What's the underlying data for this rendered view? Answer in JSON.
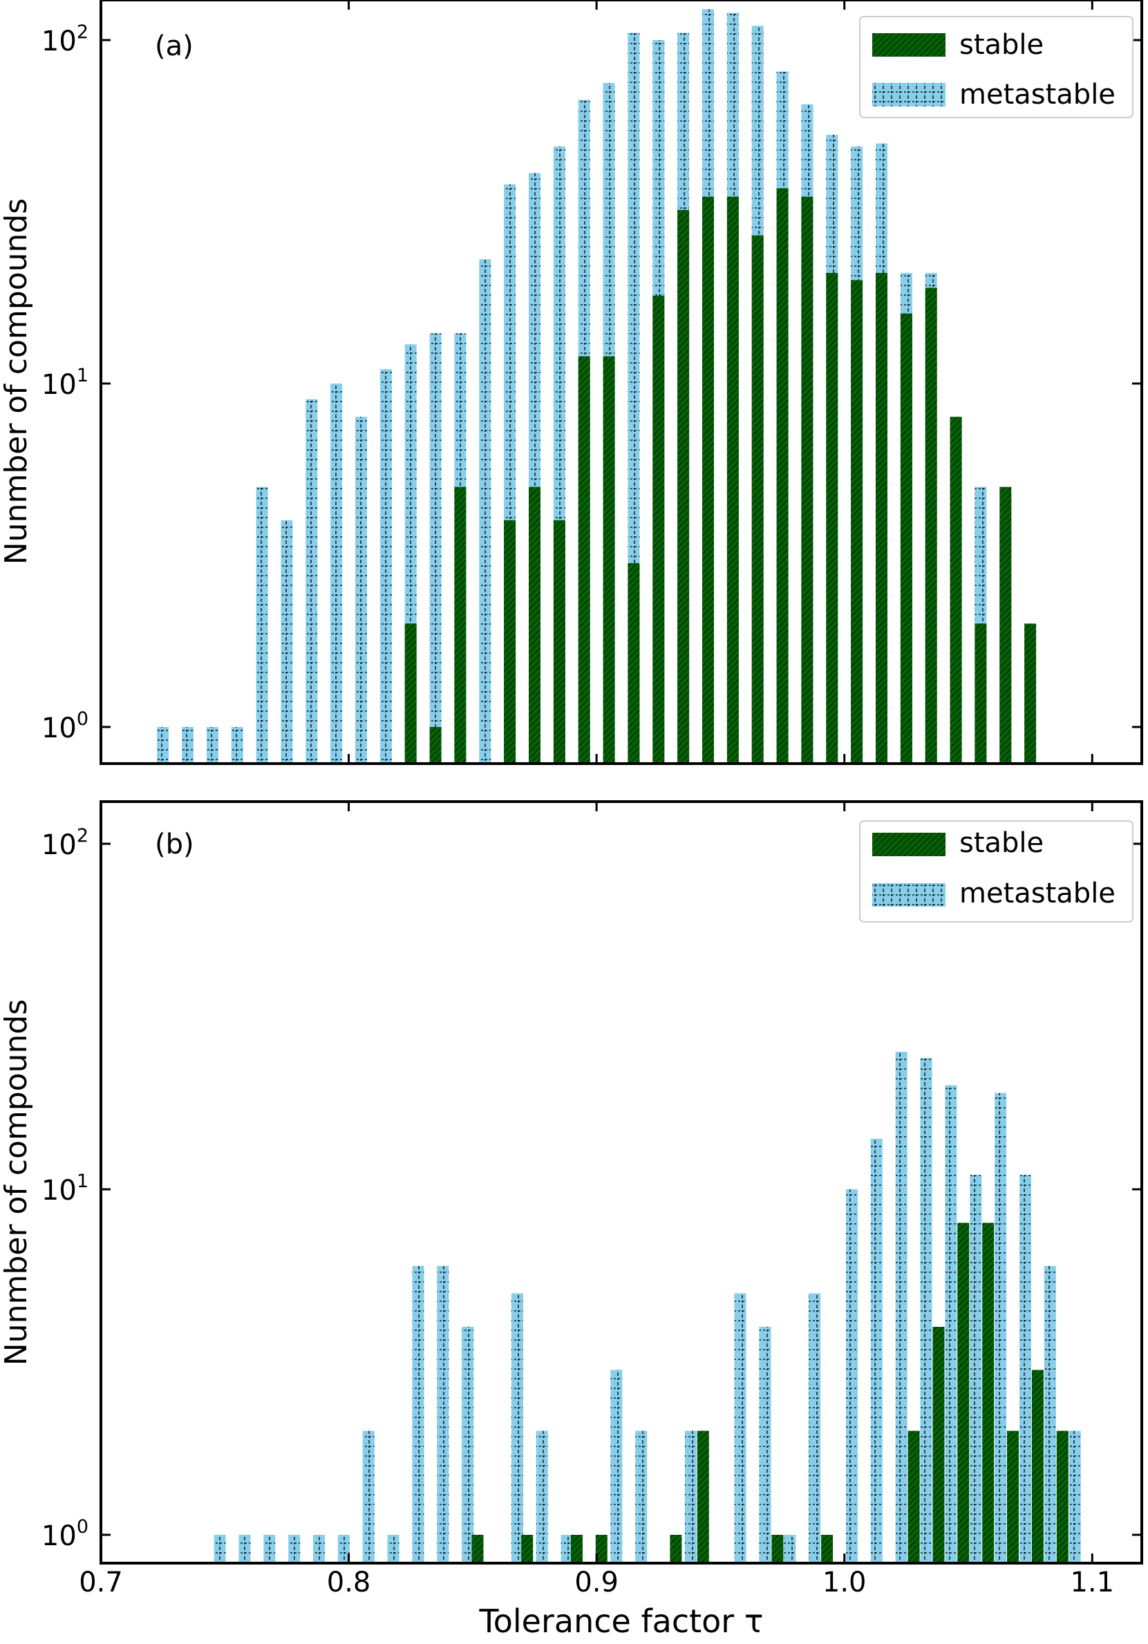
{
  "figure": {
    "xlabel": "Tolerance factor τ",
    "ylabel": "Nunmber of compounds",
    "xticks": [
      "0.7",
      "0.8",
      "0.9",
      "1.0",
      "1.1"
    ],
    "xtick_values": [
      0.7,
      0.8,
      0.9,
      1.0,
      1.1
    ],
    "ytick_labels": [
      {
        "base": "10",
        "exp": "0",
        "value": 1
      },
      {
        "base": "10",
        "exp": "1",
        "value": 10
      },
      {
        "base": "10",
        "exp": "2",
        "value": 100
      }
    ],
    "colors": {
      "stable_fill": "#006400",
      "stable_hatch": "#1a1a1a",
      "metastable_fill": "#87CEEB",
      "metastable_hatch": "#000000",
      "axes": "#000000"
    }
  },
  "chart_data": [
    {
      "type": "bar",
      "panel_label": "(a)",
      "title": "",
      "xlabel": "",
      "ylabel": "Nunmber of compounds",
      "yscale": "log",
      "ylim": [
        0.8,
        130
      ],
      "xlim": [
        0.7,
        1.12
      ],
      "grid": false,
      "legend_position": "top-right",
      "series": [
        {
          "name": "stable",
          "points": [
            {
              "x": 0.825,
              "y": 2
            },
            {
              "x": 0.835,
              "y": 1
            },
            {
              "x": 0.845,
              "y": 5
            },
            {
              "x": 0.865,
              "y": 4
            },
            {
              "x": 0.875,
              "y": 5
            },
            {
              "x": 0.885,
              "y": 4
            },
            {
              "x": 0.895,
              "y": 12
            },
            {
              "x": 0.905,
              "y": 12
            },
            {
              "x": 0.915,
              "y": 3
            },
            {
              "x": 0.925,
              "y": 18
            },
            {
              "x": 0.935,
              "y": 32
            },
            {
              "x": 0.945,
              "y": 35
            },
            {
              "x": 0.955,
              "y": 35
            },
            {
              "x": 0.965,
              "y": 27
            },
            {
              "x": 0.975,
              "y": 37
            },
            {
              "x": 0.985,
              "y": 35
            },
            {
              "x": 0.995,
              "y": 21
            },
            {
              "x": 1.005,
              "y": 20
            },
            {
              "x": 1.015,
              "y": 21
            },
            {
              "x": 1.025,
              "y": 16
            },
            {
              "x": 1.035,
              "y": 19
            },
            {
              "x": 1.045,
              "y": 8
            },
            {
              "x": 1.055,
              "y": 2
            },
            {
              "x": 1.065,
              "y": 5
            },
            {
              "x": 1.075,
              "y": 2
            }
          ]
        },
        {
          "name": "metastable",
          "points": [
            {
              "x": 0.725,
              "y": 1
            },
            {
              "x": 0.735,
              "y": 1
            },
            {
              "x": 0.745,
              "y": 1
            },
            {
              "x": 0.755,
              "y": 1
            },
            {
              "x": 0.765,
              "y": 5
            },
            {
              "x": 0.775,
              "y": 4
            },
            {
              "x": 0.785,
              "y": 9
            },
            {
              "x": 0.795,
              "y": 10
            },
            {
              "x": 0.805,
              "y": 8
            },
            {
              "x": 0.815,
              "y": 11
            },
            {
              "x": 0.825,
              "y": 13
            },
            {
              "x": 0.835,
              "y": 14
            },
            {
              "x": 0.845,
              "y": 14
            },
            {
              "x": 0.855,
              "y": 23
            },
            {
              "x": 0.865,
              "y": 38
            },
            {
              "x": 0.875,
              "y": 41
            },
            {
              "x": 0.885,
              "y": 49
            },
            {
              "x": 0.895,
              "y": 67
            },
            {
              "x": 0.905,
              "y": 75
            },
            {
              "x": 0.915,
              "y": 105
            },
            {
              "x": 0.925,
              "y": 100
            },
            {
              "x": 0.935,
              "y": 105
            },
            {
              "x": 0.945,
              "y": 123
            },
            {
              "x": 0.955,
              "y": 120
            },
            {
              "x": 0.965,
              "y": 110
            },
            {
              "x": 0.975,
              "y": 81
            },
            {
              "x": 0.985,
              "y": 65
            },
            {
              "x": 0.995,
              "y": 53
            },
            {
              "x": 1.005,
              "y": 49
            },
            {
              "x": 1.015,
              "y": 50
            },
            {
              "x": 1.025,
              "y": 21
            },
            {
              "x": 1.035,
              "y": 21
            },
            {
              "x": 1.045,
              "y": 8
            },
            {
              "x": 1.055,
              "y": 5
            },
            {
              "x": 1.065,
              "y": 4
            }
          ]
        }
      ]
    },
    {
      "type": "bar",
      "panel_label": "(b)",
      "title": "",
      "xlabel": "Tolerance factor τ",
      "ylabel": "Nunmber of compounds",
      "yscale": "log",
      "ylim": [
        0.8,
        130
      ],
      "xlim": [
        0.7,
        1.12
      ],
      "grid": false,
      "legend_position": "top-right",
      "series": [
        {
          "name": "stable",
          "points": [
            {
              "x": 0.852,
              "y": 1
            },
            {
              "x": 0.872,
              "y": 1
            },
            {
              "x": 0.892,
              "y": 1
            },
            {
              "x": 0.902,
              "y": 1
            },
            {
              "x": 0.932,
              "y": 1
            },
            {
              "x": 0.943,
              "y": 2
            },
            {
              "x": 0.973,
              "y": 1
            },
            {
              "x": 0.993,
              "y": 1
            },
            {
              "x": 1.028,
              "y": 2
            },
            {
              "x": 1.038,
              "y": 4
            },
            {
              "x": 1.048,
              "y": 8
            },
            {
              "x": 1.058,
              "y": 8
            },
            {
              "x": 1.068,
              "y": 2
            },
            {
              "x": 1.078,
              "y": 3
            },
            {
              "x": 1.088,
              "y": 2
            }
          ]
        },
        {
          "name": "metastable",
          "points": [
            {
              "x": 0.748,
              "y": 1
            },
            {
              "x": 0.758,
              "y": 1
            },
            {
              "x": 0.768,
              "y": 1
            },
            {
              "x": 0.778,
              "y": 1
            },
            {
              "x": 0.788,
              "y": 1
            },
            {
              "x": 0.798,
              "y": 1
            },
            {
              "x": 0.808,
              "y": 2
            },
            {
              "x": 0.818,
              "y": 1
            },
            {
              "x": 0.828,
              "y": 6
            },
            {
              "x": 0.838,
              "y": 6
            },
            {
              "x": 0.848,
              "y": 4
            },
            {
              "x": 0.868,
              "y": 5
            },
            {
              "x": 0.878,
              "y": 2
            },
            {
              "x": 0.888,
              "y": 1
            },
            {
              "x": 0.908,
              "y": 3
            },
            {
              "x": 0.918,
              "y": 2
            },
            {
              "x": 0.938,
              "y": 2
            },
            {
              "x": 0.958,
              "y": 5
            },
            {
              "x": 0.968,
              "y": 4
            },
            {
              "x": 0.978,
              "y": 1
            },
            {
              "x": 0.988,
              "y": 5
            },
            {
              "x": 1.003,
              "y": 10
            },
            {
              "x": 1.013,
              "y": 14
            },
            {
              "x": 1.023,
              "y": 25
            },
            {
              "x": 1.033,
              "y": 24
            },
            {
              "x": 1.043,
              "y": 20
            },
            {
              "x": 1.053,
              "y": 11
            },
            {
              "x": 1.063,
              "y": 19
            },
            {
              "x": 1.073,
              "y": 11
            },
            {
              "x": 1.083,
              "y": 6
            },
            {
              "x": 1.093,
              "y": 2
            }
          ]
        }
      ]
    }
  ]
}
